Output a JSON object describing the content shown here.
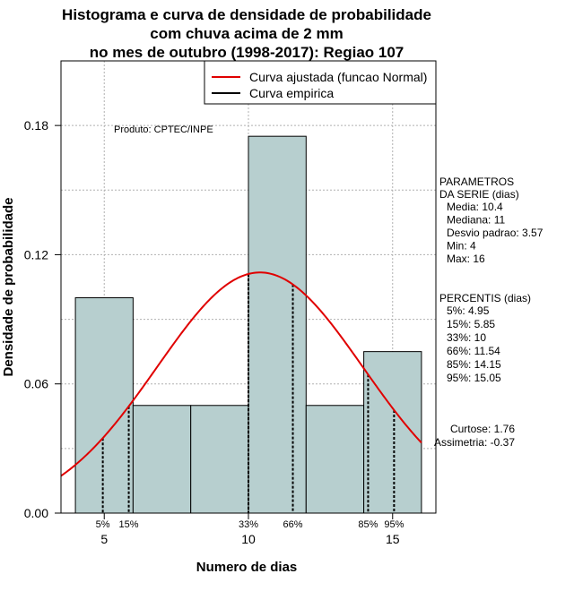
{
  "chart_data": {
    "type": "bar",
    "title_lines": [
      "Histograma e curva de densidade de probabilidade",
      "com chuva acima de 2 mm",
      "no mes de outubro (1998-2017): Regiao 107"
    ],
    "xlabel": "Numero de dias",
    "ylabel": "Densidade de probabilidade",
    "xlim": [
      3.5,
      16.5
    ],
    "ylim": [
      0,
      0.21
    ],
    "xticks": [
      5,
      10,
      15
    ],
    "yticks": [
      0.0,
      0.06,
      0.12,
      0.18
    ],
    "ytick_labels": [
      "0.00",
      "0.06",
      "0.12",
      "0.18"
    ],
    "grid": true,
    "bars": [
      {
        "x0": 4,
        "x1": 6,
        "value": 0.1
      },
      {
        "x0": 6,
        "x1": 8,
        "value": 0.05
      },
      {
        "x0": 8,
        "x1": 10,
        "value": 0.05
      },
      {
        "x0": 10,
        "x1": 12,
        "value": 0.175
      },
      {
        "x0": 12,
        "x1": 14,
        "value": 0.05
      },
      {
        "x0": 14,
        "x1": 16,
        "value": 0.075
      }
    ],
    "bar_color": "#b7cfcf",
    "normal_curve": {
      "name": "Curva ajustada (funcao Normal)",
      "color": "#e00000",
      "mean": 10.4,
      "sd": 3.57
    },
    "empirical_curve": {
      "name": "Curva empirica",
      "color": "#000000"
    },
    "percentile_lines": [
      {
        "x": 4.95,
        "label": "5%"
      },
      {
        "x": 5.85,
        "label": "15%"
      },
      {
        "x": 10,
        "label": "33%"
      },
      {
        "x": 11.54,
        "label": "66%"
      },
      {
        "x": 14.15,
        "label": "85%"
      },
      {
        "x": 15.05,
        "label": "95%"
      }
    ],
    "legend_position": "top-right",
    "annotation": "Produto: CPTEC/INPE",
    "parametros": {
      "header": [
        "PARAMETROS",
        "DA SERIE (dias)"
      ],
      "lines": [
        "Media: 10.4",
        "Mediana: 11",
        "Desvio padrao: 3.57",
        "Min: 4",
        "Max: 16"
      ]
    },
    "percentis": {
      "header": "PERCENTIS (dias)",
      "lines": [
        "5%: 4.95",
        "15%: 5.85",
        "33%: 10",
        "66%: 11.54",
        "85%: 14.15",
        "95%: 15.05"
      ]
    },
    "stats": [
      "Curtose: 1.76",
      "Assimetria: -0.37"
    ]
  }
}
